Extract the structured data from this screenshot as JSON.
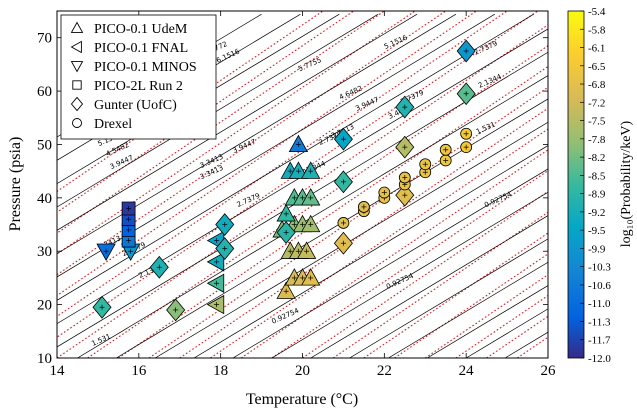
{
  "chart_data": {
    "type": "scatter",
    "title": "",
    "xlabel": "Temperature (°C)",
    "ylabel": "Pressure (psia)",
    "xlim": [
      14,
      26
    ],
    "ylim": [
      10,
      75
    ],
    "xticks": [
      "14",
      "16",
      "18",
      "20",
      "22",
      "24",
      "26"
    ],
    "yticks": [
      "10",
      "20",
      "30",
      "40",
      "50",
      "60",
      "70"
    ],
    "legend_position": "top-left",
    "colorbar": {
      "label": "log₁₀(Probability/keV)",
      "min": -12.0,
      "max": -5.4,
      "ticks": [
        "-5.4",
        "-5.8",
        "-6.1",
        "-6.5",
        "-6.8",
        "-7.2",
        "-7.5",
        "-7.8",
        "-8.2",
        "-8.5",
        "-8.9",
        "-9.2",
        "-9.5",
        "-9.9",
        "-10.3",
        "-10.6",
        "-11.0",
        "-11.3",
        "-11.7",
        "-12.0"
      ],
      "colormap": "parula"
    },
    "contour_labels": [
      {
        "text": "6.7772",
        "x": 17.9,
        "y": 67.6
      },
      {
        "text": "6.1516",
        "x": 18.2,
        "y": 66.2
      },
      {
        "text": "5.7755",
        "x": 20.2,
        "y": 64.6
      },
      {
        "text": "5.1516",
        "x": 22.3,
        "y": 68.8
      },
      {
        "text": "4.6482",
        "x": 21.2,
        "y": 59.3
      },
      {
        "text": "3.9447",
        "x": 21.6,
        "y": 57.2
      },
      {
        "text": "3.4413",
        "x": 22.4,
        "y": 55.7
      },
      {
        "text": "2.7379",
        "x": 24.5,
        "y": 67.7
      },
      {
        "text": "2.1344",
        "x": 24.6,
        "y": 61.5
      },
      {
        "text": "5.755",
        "x": 14.8,
        "y": 53.0
      },
      {
        "text": "5.1516",
        "x": 15.3,
        "y": 50.6
      },
      {
        "text": "4.5482",
        "x": 15.5,
        "y": 48.7
      },
      {
        "text": "3.9447",
        "x": 15.6,
        "y": 46.3
      },
      {
        "text": "4.6482",
        "x": 17.6,
        "y": 55.1
      },
      {
        "text": "3.9447",
        "x": 18.6,
        "y": 49.3
      },
      {
        "text": "3.3413",
        "x": 17.8,
        "y": 46.5
      },
      {
        "text": "3.3413",
        "x": 21.0,
        "y": 52.1
      },
      {
        "text": "2.7379",
        "x": 18.7,
        "y": 39.2
      },
      {
        "text": "2.7379",
        "x": 20.7,
        "y": 50.8
      },
      {
        "text": "2.7379",
        "x": 22.7,
        "y": 58.5
      },
      {
        "text": "2.1344",
        "x": 20.3,
        "y": 45.2
      },
      {
        "text": "2.1344",
        "x": 16.3,
        "y": 25.9
      },
      {
        "text": "1.531",
        "x": 24.5,
        "y": 52.7
      },
      {
        "text": "1.531",
        "x": 15.1,
        "y": 13.0
      },
      {
        "text": "3.3413",
        "x": 15.3,
        "y": 31.2
      },
      {
        "text": "2.7379",
        "x": 15.9,
        "y": 30.0
      },
      {
        "text": "3.3413",
        "x": 17.8,
        "y": 44.4
      },
      {
        "text": "0.92754",
        "x": 19.6,
        "y": 17.5
      },
      {
        "text": "0.92754",
        "x": 22.4,
        "y": 24.0
      },
      {
        "text": "0.92754",
        "x": 24.8,
        "y": 39.3
      }
    ],
    "series": [
      {
        "name": "PICO-0.1 UdeM",
        "marker": "triangle-up",
        "points": [
          {
            "x": 19.6,
            "y": 22.5,
            "c": -7.0
          },
          {
            "x": 19.8,
            "y": 25.0,
            "c": -7.1
          },
          {
            "x": 20.0,
            "y": 25.0,
            "c": -7.0
          },
          {
            "x": 20.2,
            "y": 25.0,
            "c": -6.9
          },
          {
            "x": 19.7,
            "y": 30.0,
            "c": -7.5
          },
          {
            "x": 19.9,
            "y": 30.0,
            "c": -7.4
          },
          {
            "x": 20.1,
            "y": 30.0,
            "c": -7.3
          },
          {
            "x": 19.5,
            "y": 34.0,
            "c": -8.1
          },
          {
            "x": 19.8,
            "y": 35.0,
            "c": -7.9
          },
          {
            "x": 20.0,
            "y": 35.0,
            "c": -7.8
          },
          {
            "x": 20.2,
            "y": 35.0,
            "c": -7.7
          },
          {
            "x": 19.6,
            "y": 37.0,
            "c": -8.8
          },
          {
            "x": 19.8,
            "y": 40.0,
            "c": -8.5
          },
          {
            "x": 20.0,
            "y": 40.0,
            "c": -8.4
          },
          {
            "x": 20.2,
            "y": 40.0,
            "c": -8.3
          },
          {
            "x": 19.7,
            "y": 45.0,
            "c": -9.3
          },
          {
            "x": 19.9,
            "y": 45.0,
            "c": -9.2
          },
          {
            "x": 20.2,
            "y": 45.0,
            "c": -9.1
          },
          {
            "x": 19.9,
            "y": 50.0,
            "c": -10.6
          }
        ]
      },
      {
        "name": "PICO-0.1 FNAL",
        "marker": "triangle-left",
        "points": [
          {
            "x": 17.9,
            "y": 20.0,
            "c": -7.6
          },
          {
            "x": 17.9,
            "y": 24.0,
            "c": -8.6
          },
          {
            "x": 17.9,
            "y": 28.0,
            "c": -9.3
          },
          {
            "x": 17.9,
            "y": 32.0,
            "c": -9.6
          }
        ]
      },
      {
        "name": "PICO-0.1 MINOS",
        "marker": "triangle-down",
        "points": [
          {
            "x": 15.2,
            "y": 30.0,
            "c": -10.9
          },
          {
            "x": 15.8,
            "y": 30.0,
            "c": -9.9
          }
        ]
      },
      {
        "name": "PICO-2L Run 2",
        "marker": "square",
        "points": [
          {
            "x": 15.75,
            "y": 32.0,
            "c": -10.7
          },
          {
            "x": 15.75,
            "y": 34.0,
            "c": -11.2
          },
          {
            "x": 15.75,
            "y": 36.0,
            "c": -11.5
          },
          {
            "x": 15.75,
            "y": 38.0,
            "c": -11.8
          }
        ]
      },
      {
        "name": "Gunter (UofC)",
        "marker": "diamond",
        "points": [
          {
            "x": 15.1,
            "y": 19.5,
            "c": -8.8
          },
          {
            "x": 16.5,
            "y": 27.0,
            "c": -9.1
          },
          {
            "x": 16.9,
            "y": 19.0,
            "c": -8.0
          },
          {
            "x": 18.1,
            "y": 30.5,
            "c": -9.0
          },
          {
            "x": 18.1,
            "y": 35.0,
            "c": -9.3
          },
          {
            "x": 19.6,
            "y": 33.5,
            "c": -8.9
          },
          {
            "x": 21.0,
            "y": 31.5,
            "c": -6.9
          },
          {
            "x": 21.0,
            "y": 43.0,
            "c": -8.8
          },
          {
            "x": 21.0,
            "y": 51.0,
            "c": -9.5
          },
          {
            "x": 22.5,
            "y": 40.5,
            "c": -6.9
          },
          {
            "x": 22.5,
            "y": 49.5,
            "c": -7.5
          },
          {
            "x": 22.5,
            "y": 57.0,
            "c": -9.0
          },
          {
            "x": 24.0,
            "y": 59.5,
            "c": -8.4
          },
          {
            "x": 24.0,
            "y": 67.5,
            "c": -9.9
          }
        ]
      },
      {
        "name": "Drexel",
        "marker": "circle",
        "points": [
          {
            "x": 21.0,
            "y": 35.3,
            "c": -6.8
          },
          {
            "x": 21.5,
            "y": 37.5,
            "c": -6.8
          },
          {
            "x": 22.0,
            "y": 40.0,
            "c": -6.7
          },
          {
            "x": 22.5,
            "y": 42.5,
            "c": -6.6
          },
          {
            "x": 23.0,
            "y": 44.8,
            "c": -6.6
          },
          {
            "x": 23.5,
            "y": 47.0,
            "c": -6.5
          },
          {
            "x": 24.0,
            "y": 49.5,
            "c": -6.4
          },
          {
            "x": 21.5,
            "y": 38.3,
            "c": -6.9
          },
          {
            "x": 22.0,
            "y": 41.0,
            "c": -6.8
          },
          {
            "x": 22.5,
            "y": 43.8,
            "c": -6.7
          },
          {
            "x": 23.0,
            "y": 46.3,
            "c": -6.6
          },
          {
            "x": 23.5,
            "y": 49.0,
            "c": -6.5
          },
          {
            "x": 24.0,
            "y": 52.0,
            "c": -6.4
          }
        ]
      }
    ]
  }
}
